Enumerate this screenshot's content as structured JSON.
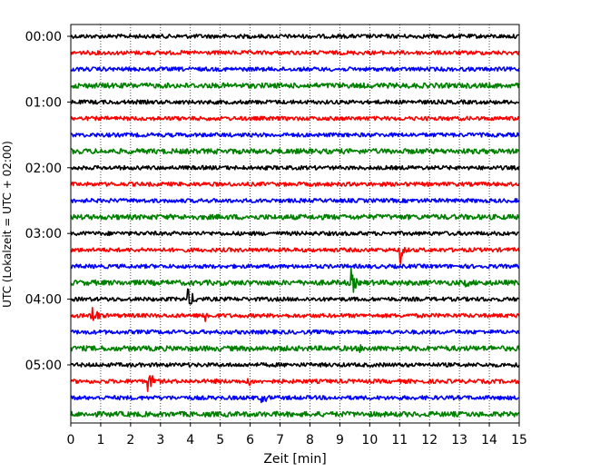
{
  "chart_data": {
    "type": "line",
    "title": "",
    "xlabel": "Zeit  [min]",
    "ylabel": "UTC (Lokalzeit = UTC + 02:00)",
    "xlim": [
      0,
      15
    ],
    "x_ticks": [
      "0",
      "1",
      "2",
      "3",
      "4",
      "5",
      "6",
      "7",
      "8",
      "9",
      "10",
      "11",
      "12",
      "13",
      "14",
      "15"
    ],
    "y_tick_labels": [
      "00:00",
      "01:00",
      "02:00",
      "03:00",
      "04:00",
      "05:00"
    ],
    "trace_interval_minutes": 15,
    "trace_count": 24,
    "trace_color_cycle": [
      "#000000",
      "#ff0000",
      "#0000ff",
      "#008000"
    ],
    "grid": "vertical-dotted",
    "events": [
      {
        "trace_start": "03:15",
        "x_min": 11.05,
        "amplitude": 1.0,
        "duration": 0.3
      },
      {
        "trace_start": "03:45",
        "x_min": 9.4,
        "amplitude": 1.1,
        "duration": 0.35
      },
      {
        "trace_start": "03:45",
        "x_min": 13.25,
        "amplitude": 0.4,
        "duration": 0.3
      },
      {
        "trace_start": "04:00",
        "x_min": 3.95,
        "amplitude": 0.7,
        "duration": 0.6
      },
      {
        "trace_start": "04:00",
        "x_min": 1.3,
        "amplitude": 0.25,
        "duration": 0.3
      },
      {
        "trace_start": "04:00",
        "x_min": 13.8,
        "amplitude": 0.2,
        "duration": 0.5
      },
      {
        "trace_start": "04:15",
        "x_min": 0.7,
        "amplitude": 0.8,
        "duration": 0.6
      },
      {
        "trace_start": "04:15",
        "x_min": 4.45,
        "amplitude": 0.7,
        "duration": 0.4
      },
      {
        "trace_start": "04:30",
        "x_min": 0.6,
        "amplitude": 0.2,
        "duration": 0.5
      },
      {
        "trace_start": "04:45",
        "x_min": 9.7,
        "amplitude": 0.3,
        "duration": 0.2
      },
      {
        "trace_start": "04:45",
        "x_min": 12.6,
        "amplitude": 0.2,
        "duration": 1.2
      },
      {
        "trace_start": "04:45",
        "x_min": 14.1,
        "amplitude": 0.2,
        "duration": 0.6
      },
      {
        "trace_start": "05:15",
        "x_min": 2.55,
        "amplitude": 0.8,
        "duration": 0.7
      },
      {
        "trace_start": "05:15",
        "x_min": 5.95,
        "amplitude": 0.4,
        "duration": 0.5
      },
      {
        "trace_start": "05:15",
        "x_min": 4.9,
        "amplitude": 0.2,
        "duration": 0.3
      },
      {
        "trace_start": "05:30",
        "x_min": 6.4,
        "amplitude": 0.4,
        "duration": 0.8
      }
    ]
  }
}
